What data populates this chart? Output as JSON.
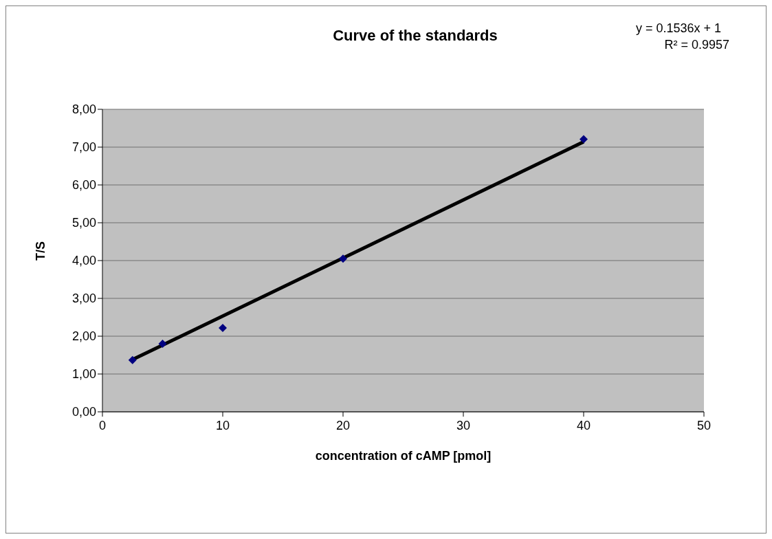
{
  "chart_data": {
    "type": "scatter",
    "title": "Curve of the standards",
    "xlabel": "concentration of cAMP [pmol]",
    "ylabel": "T/S",
    "annotations": [
      "y = 0.1536x + 1",
      "R² = 0.9957"
    ],
    "x": [
      2.5,
      5,
      10,
      20,
      40
    ],
    "series": [
      {
        "color": "#000080",
        "values": [
          1.37,
          1.8,
          2.22,
          4.05,
          7.21
        ],
        "marker": "diamond"
      },
      {
        "type": "line",
        "color": "#000000",
        "x": [
          2.5,
          40
        ],
        "values": [
          1.38,
          7.14
        ],
        "marker": "none",
        "line_style": "solid"
      }
    ],
    "xlim": [
      0,
      50
    ],
    "xticks": [
      0,
      10,
      20,
      30,
      40,
      50
    ],
    "ylim": [
      0,
      8
    ],
    "yticks": [
      {
        "value": 0,
        "label": "0,00"
      },
      {
        "value": 1,
        "label": "1,00"
      },
      {
        "value": 2,
        "label": "2,00"
      },
      {
        "value": 3,
        "label": "3,00"
      },
      {
        "value": 4,
        "label": "4,00"
      },
      {
        "value": 5,
        "label": "5,00"
      },
      {
        "value": 6,
        "label": "6,00"
      },
      {
        "value": 7,
        "label": "7,00"
      },
      {
        "value": 8,
        "label": "8,00"
      }
    ],
    "grid": "y",
    "legend": false
  }
}
